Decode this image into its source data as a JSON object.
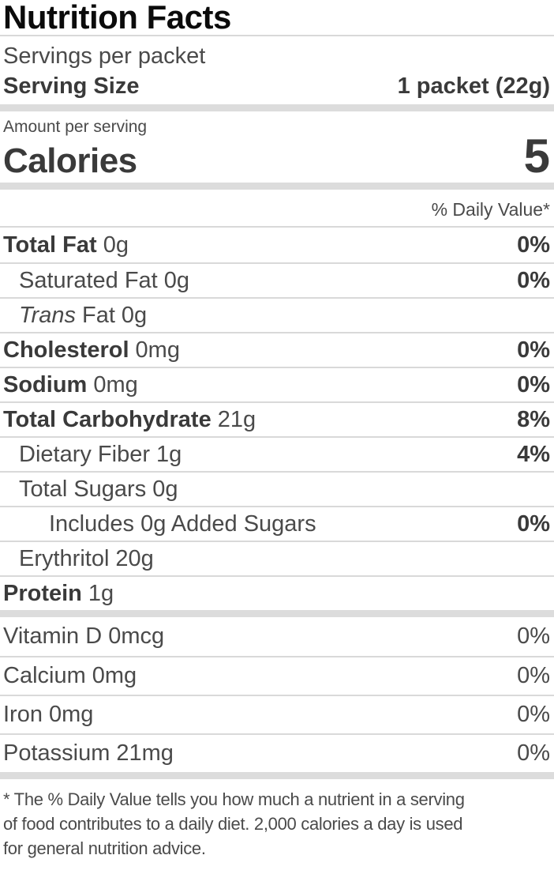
{
  "label": {
    "title": "Nutrition Facts",
    "servings_per": "Servings per packet",
    "serving_size_label": "Serving Size",
    "serving_size_value": "1 packet (22g)",
    "amount_per": "Amount per serving",
    "calories_label": "Calories",
    "calories_value": "5",
    "daily_value_header": "% Daily Value*",
    "nutrients": [
      {
        "name": "Total Fat",
        "amount": "0g",
        "dv": "0%"
      },
      {
        "name": "Saturated Fat",
        "amount": "0g",
        "dv": "0%"
      },
      {
        "name_italic": "Trans",
        "name": "Fat",
        "amount": "0g"
      },
      {
        "name": "Cholesterol",
        "amount": "0mg",
        "dv": "0%"
      },
      {
        "name": "Sodium",
        "amount": "0mg",
        "dv": "0%"
      },
      {
        "name": "Total Carbohydrate",
        "amount": "21g",
        "dv": "8%"
      },
      {
        "name": "Dietary Fiber",
        "amount": "1g",
        "dv": "4%"
      },
      {
        "name": "Total Sugars",
        "amount": "0g"
      },
      {
        "name": "Includes 0g Added Sugars",
        "dv": "0%"
      },
      {
        "name": "Erythritol",
        "amount": "20g"
      },
      {
        "name": "Protein",
        "amount": "1g"
      }
    ],
    "vitamins": [
      {
        "name": "Vitamin D",
        "amount": "0mcg",
        "dv": "0%"
      },
      {
        "name": "Calcium",
        "amount": "0mg",
        "dv": "0%"
      },
      {
        "name": "Iron",
        "amount": "0mg",
        "dv": "0%"
      },
      {
        "name": "Potassium",
        "amount": "21mg",
        "dv": "0%"
      }
    ],
    "footnote_lines": [
      "* The % Daily Value tells you how much a nutrient in a serving",
      "of food contributes to a daily diet. 2,000 calories a day is used",
      "for general nutrition advice."
    ]
  },
  "colors": {
    "title_text": "#0b0b0b",
    "bold_text": "#3a3a3a",
    "regular_text": "#4a4a4a",
    "divider": "#d9d9d9",
    "section_bar": "#dcdcdc",
    "background": "#ffffff"
  }
}
